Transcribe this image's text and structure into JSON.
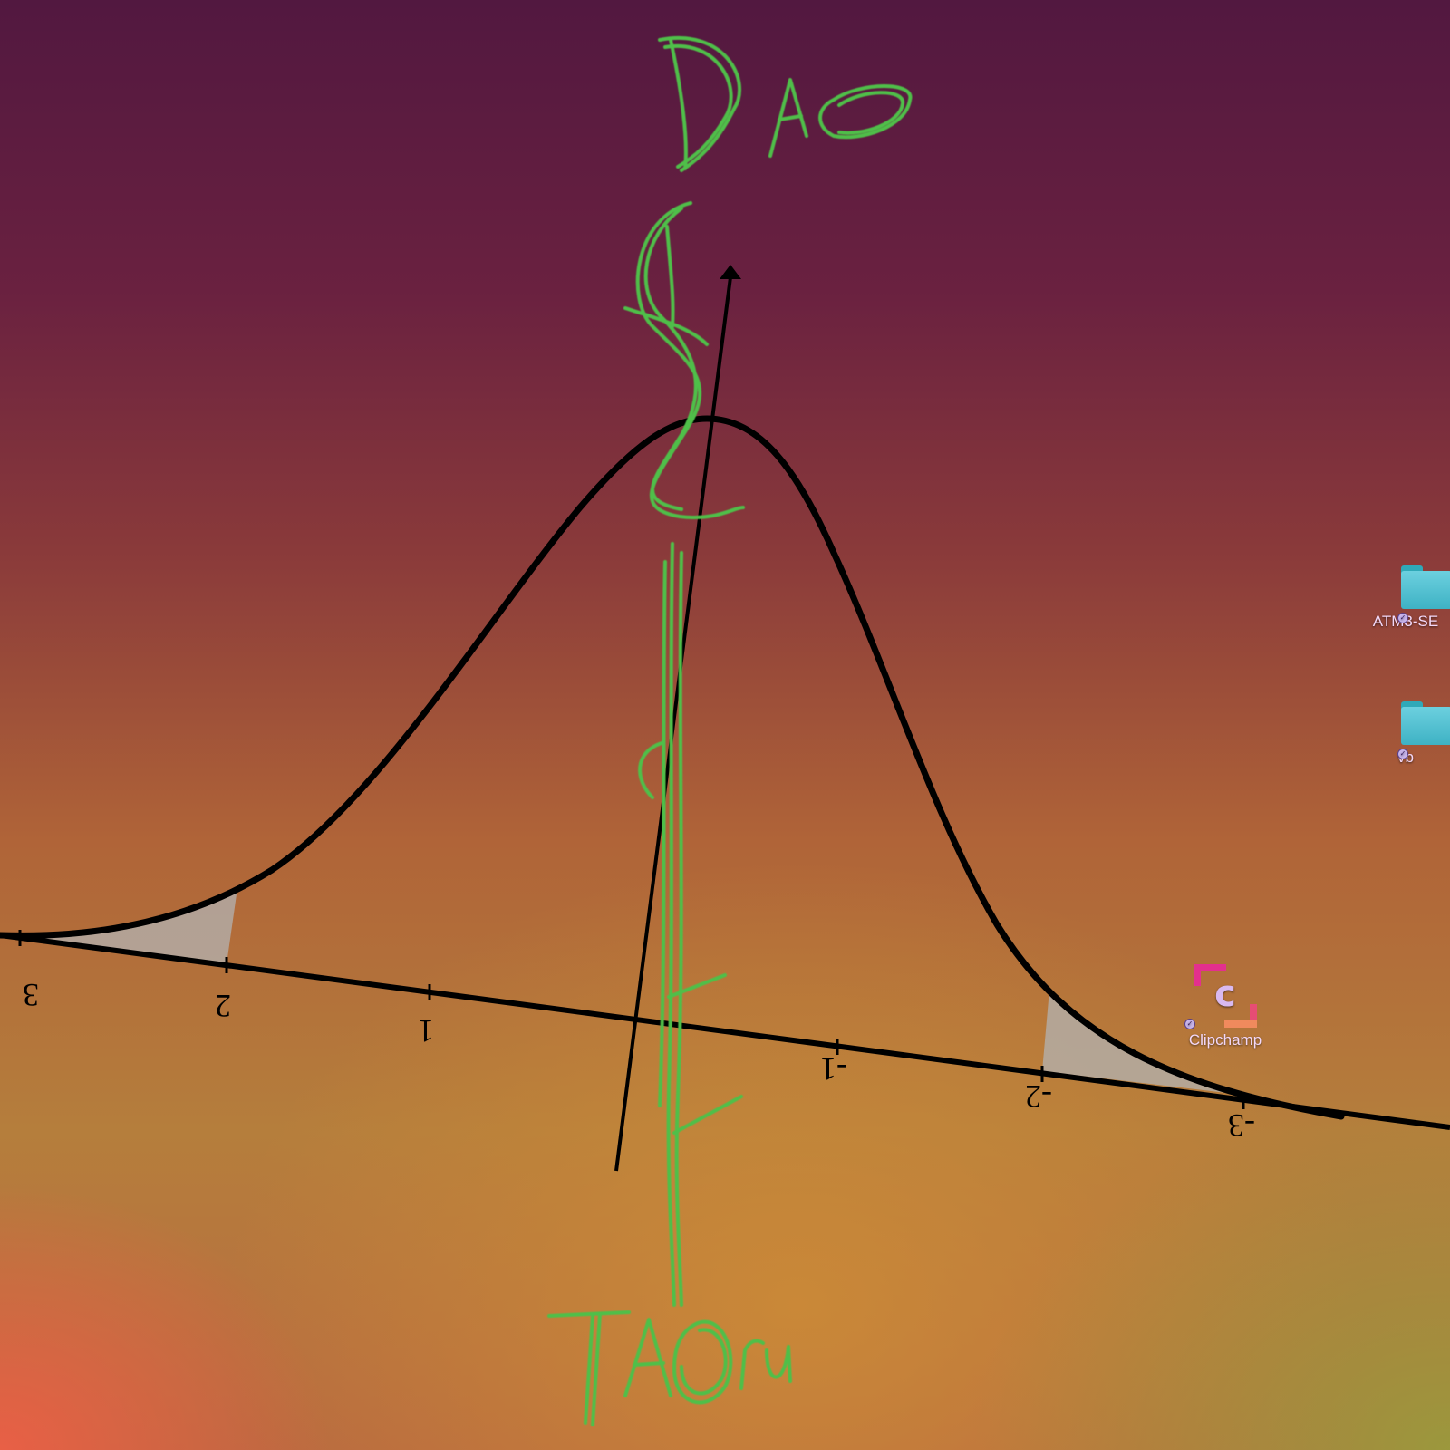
{
  "desktop": {
    "icons": [
      {
        "label": "ATM3-SE",
        "icon": "folder-icon",
        "status": "synced"
      },
      {
        "label": "vb",
        "icon": "folder-icon",
        "status": "synced"
      },
      {
        "label": "Clipchamp",
        "icon": "clipchamp-app-icon",
        "status": "synced"
      }
    ]
  },
  "drawing": {
    "handwriting_top": "DAO",
    "handwriting_bottom": "TAOru",
    "tick_labels": [
      "3",
      "2",
      "1",
      "-1",
      "-2",
      "-3"
    ],
    "ink_color": "#4fbf4a",
    "curve_color": "#000000",
    "shade_color": "#b3b3b3"
  }
}
